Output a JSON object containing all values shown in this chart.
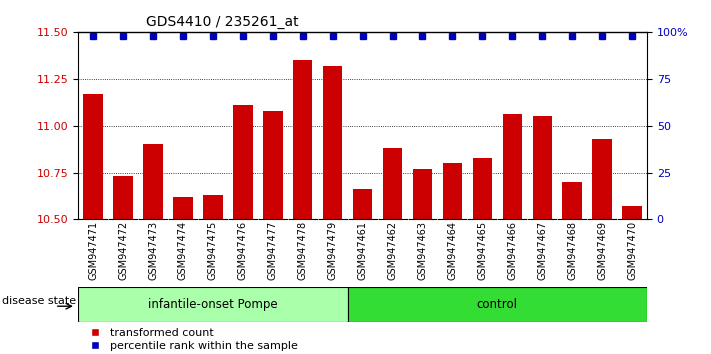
{
  "title": "GDS4410 / 235261_at",
  "samples": [
    "GSM947471",
    "GSM947472",
    "GSM947473",
    "GSM947474",
    "GSM947475",
    "GSM947476",
    "GSM947477",
    "GSM947478",
    "GSM947479",
    "GSM947461",
    "GSM947462",
    "GSM947463",
    "GSM947464",
    "GSM947465",
    "GSM947466",
    "GSM947467",
    "GSM947468",
    "GSM947469",
    "GSM947470"
  ],
  "bar_values": [
    11.17,
    10.73,
    10.9,
    10.62,
    10.63,
    11.11,
    11.08,
    11.35,
    11.32,
    10.66,
    10.88,
    10.77,
    10.8,
    10.83,
    11.06,
    11.05,
    10.7,
    10.93,
    10.57
  ],
  "group_labels": [
    "infantile-onset Pompe",
    "control"
  ],
  "group_sizes": [
    9,
    10
  ],
  "group_colors": [
    "#aaffaa",
    "#33dd33"
  ],
  "bar_color": "#cc0000",
  "percentile_color": "#0000bb",
  "ylim": [
    10.5,
    11.5
  ],
  "y_ticks": [
    10.5,
    10.75,
    11.0,
    11.25,
    11.5
  ],
  "y_right_ticks": [
    0,
    25,
    50,
    75,
    100
  ],
  "disease_state_label": "disease state",
  "legend_labels": [
    "transformed count",
    "percentile rank within the sample"
  ]
}
